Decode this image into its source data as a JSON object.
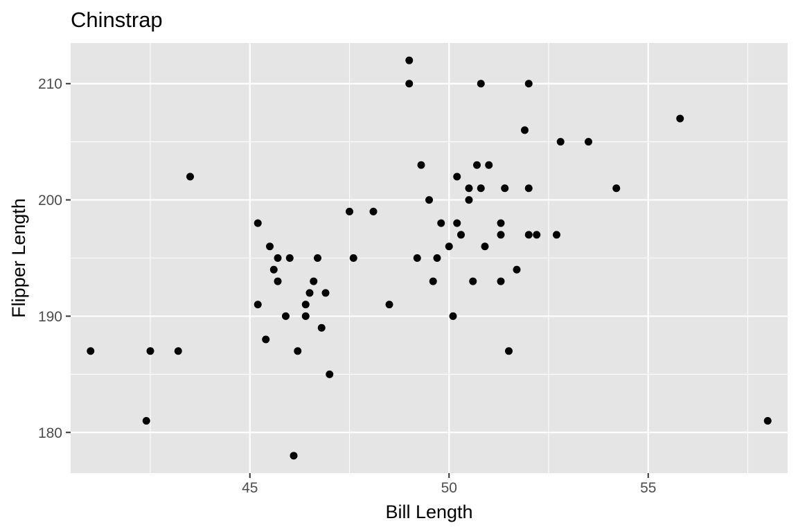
{
  "chart_data": {
    "type": "scatter",
    "title": "Chinstrap",
    "xlabel": "Bill Length",
    "ylabel": "Flipper Length",
    "xlim": [
      40.5,
      58.5
    ],
    "ylim": [
      176.5,
      213.5
    ],
    "x_ticks": [
      45,
      50,
      55
    ],
    "x_tick_labels": [
      "45",
      "50",
      "55"
    ],
    "y_ticks": [
      180,
      190,
      200,
      210
    ],
    "y_tick_labels": [
      "180",
      "190",
      "200",
      "210"
    ],
    "grid": true,
    "colors": {
      "panel": "#e5e5e5",
      "grid": "#ffffff",
      "point": "#000000",
      "tick": "#333333"
    },
    "series": [
      {
        "points": [
          [
            41.0,
            187
          ],
          [
            42.4,
            181
          ],
          [
            42.5,
            187
          ],
          [
            43.2,
            187
          ],
          [
            43.5,
            202
          ],
          [
            45.2,
            198
          ],
          [
            45.2,
            191
          ],
          [
            45.4,
            188
          ],
          [
            45.5,
            196
          ],
          [
            45.6,
            194
          ],
          [
            45.7,
            195
          ],
          [
            45.7,
            193
          ],
          [
            45.9,
            190
          ],
          [
            46.0,
            195
          ],
          [
            46.1,
            178
          ],
          [
            46.2,
            187
          ],
          [
            46.4,
            191
          ],
          [
            46.4,
            190
          ],
          [
            46.5,
            192
          ],
          [
            46.6,
            193
          ],
          [
            46.7,
            195
          ],
          [
            46.8,
            189
          ],
          [
            46.9,
            192
          ],
          [
            47.0,
            185
          ],
          [
            47.5,
            199
          ],
          [
            47.6,
            195
          ],
          [
            48.1,
            199
          ],
          [
            48.5,
            191
          ],
          [
            49.0,
            212
          ],
          [
            49.0,
            210
          ],
          [
            49.2,
            195
          ],
          [
            49.3,
            203
          ],
          [
            49.5,
            200
          ],
          [
            49.6,
            193
          ],
          [
            49.7,
            195
          ],
          [
            49.8,
            198
          ],
          [
            50.0,
            196
          ],
          [
            50.1,
            190
          ],
          [
            50.2,
            202
          ],
          [
            50.2,
            198
          ],
          [
            50.3,
            197
          ],
          [
            50.5,
            201
          ],
          [
            50.5,
            200
          ],
          [
            50.6,
            193
          ],
          [
            50.7,
            203
          ],
          [
            50.8,
            210
          ],
          [
            50.8,
            201
          ],
          [
            50.9,
            196
          ],
          [
            51.0,
            203
          ],
          [
            51.3,
            198
          ],
          [
            51.3,
            197
          ],
          [
            51.3,
            193
          ],
          [
            51.4,
            201
          ],
          [
            51.5,
            187
          ],
          [
            51.7,
            194
          ],
          [
            51.9,
            206
          ],
          [
            52.0,
            210
          ],
          [
            52.0,
            201
          ],
          [
            52.0,
            197
          ],
          [
            52.2,
            197
          ],
          [
            52.7,
            197
          ],
          [
            52.8,
            205
          ],
          [
            53.5,
            205
          ],
          [
            54.2,
            201
          ],
          [
            55.8,
            207
          ],
          [
            58.0,
            181
          ]
        ]
      }
    ]
  }
}
